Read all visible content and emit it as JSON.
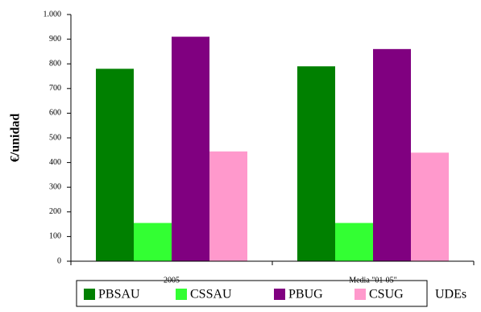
{
  "chart_data": {
    "type": "bar",
    "y_label": "€/unidad",
    "x_label": "UDEs",
    "categories": [
      "2005",
      "Media \"01-05\""
    ],
    "series": [
      {
        "name": "PBSAU",
        "color": "#008000",
        "values": [
          780,
          790
        ]
      },
      {
        "name": "CSSAU",
        "color": "#33ff33",
        "values": [
          155,
          155
        ]
      },
      {
        "name": "PBUG",
        "color": "#800080",
        "values": [
          910,
          860
        ]
      },
      {
        "name": "CSUG",
        "color": "#ff99cc",
        "values": [
          445,
          440
        ]
      }
    ],
    "ylim": [
      0,
      1000
    ],
    "yticks": [
      0,
      100,
      200,
      300,
      400,
      500,
      600,
      700,
      800,
      900,
      {
        "value": 1000,
        "label": "1.000"
      }
    ],
    "grid": false
  }
}
